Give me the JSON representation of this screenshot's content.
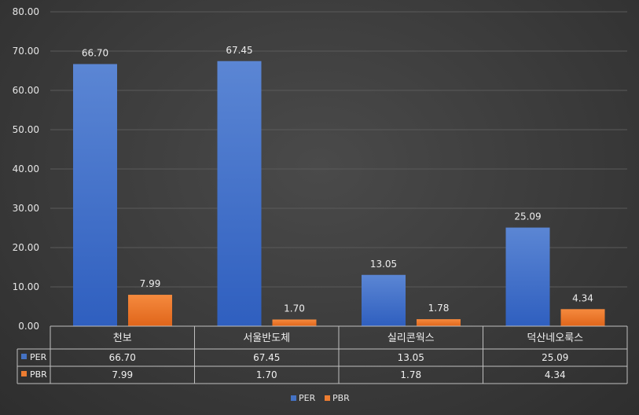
{
  "chart_data": {
    "type": "bar",
    "categories": [
      "천보",
      "서울반도체",
      "실리콘웍스",
      "덕산네오룩스"
    ],
    "series": [
      {
        "name": "PER",
        "values": [
          66.7,
          67.45,
          13.05,
          25.09
        ],
        "labels": [
          "66.70",
          "67.45",
          "13.05",
          "25.09"
        ],
        "color": "#4472C4"
      },
      {
        "name": "PBR",
        "values": [
          7.99,
          1.7,
          1.78,
          4.34
        ],
        "labels": [
          "7.99",
          "1.70",
          "1.78",
          "4.34"
        ],
        "color": "#ED7D31"
      }
    ],
    "yticks": [
      "0.00",
      "10.00",
      "20.00",
      "30.00",
      "40.00",
      "50.00",
      "60.00",
      "70.00",
      "80.00"
    ],
    "ylim": [
      0,
      80
    ],
    "grid": true,
    "legend": "bottom",
    "data_table": true
  }
}
